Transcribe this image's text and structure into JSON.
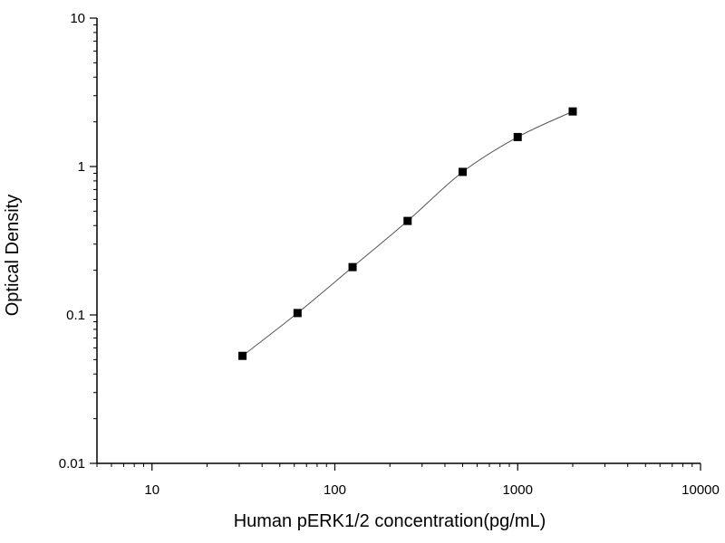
{
  "chart_data": {
    "type": "scatter",
    "title": "",
    "xlabel": "Human pERK1/2 concentration(pg/mL)",
    "ylabel": "Optical Density",
    "xscale": "log",
    "yscale": "log",
    "xlim": [
      5,
      10000
    ],
    "ylim": [
      0.01,
      10
    ],
    "x_ticks": [
      {
        "value": 10,
        "label": "10"
      },
      {
        "value": 100,
        "label": "100"
      },
      {
        "value": 1000,
        "label": "1000"
      },
      {
        "value": 10000,
        "label": "10000"
      }
    ],
    "y_ticks": [
      {
        "value": 0.01,
        "label": "0.01"
      },
      {
        "value": 0.1,
        "label": "0.1"
      },
      {
        "value": 1,
        "label": "1"
      },
      {
        "value": 10,
        "label": "10"
      }
    ],
    "grid": false,
    "legend": "none",
    "series": [
      {
        "x": [
          31.25,
          62.5,
          125,
          250,
          500,
          1000,
          2000
        ],
        "y": [
          0.053,
          0.103,
          0.21,
          0.43,
          0.92,
          1.58,
          2.35
        ],
        "marker": "square",
        "color": "#000000",
        "fit_curve": true
      }
    ]
  }
}
